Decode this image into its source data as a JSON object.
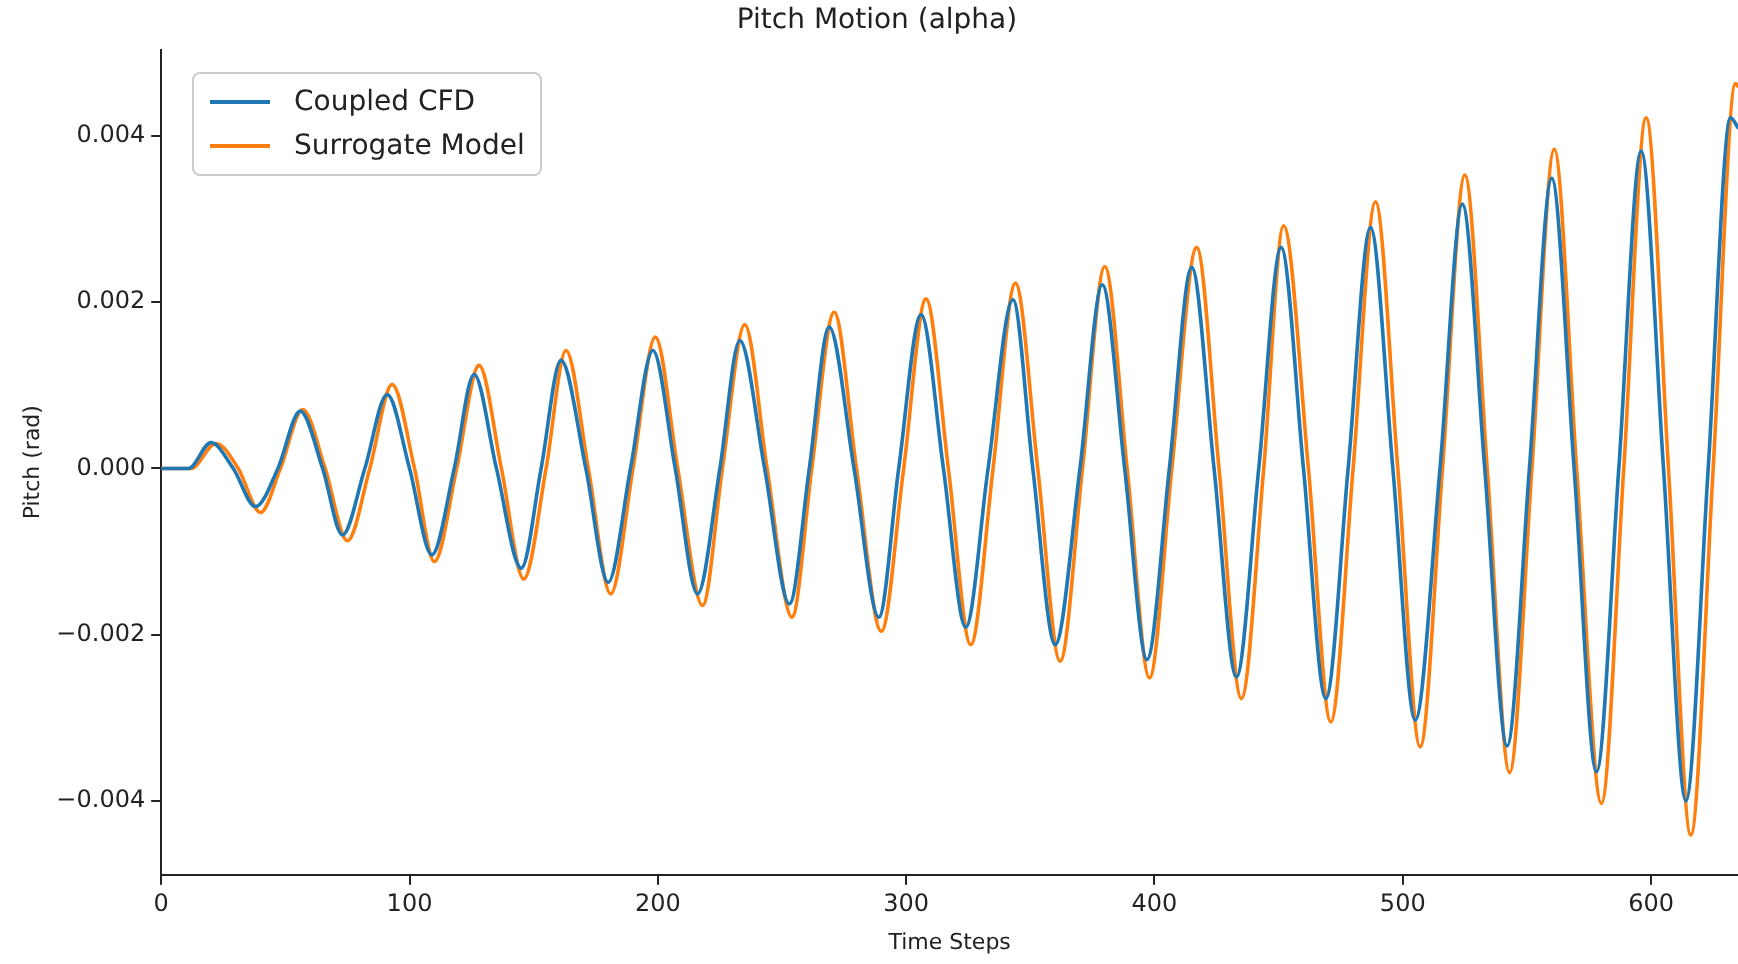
{
  "chart_data": {
    "type": "line",
    "title": "Pitch Motion (alpha)",
    "xlabel": "Time Steps",
    "ylabel": "Pitch (rad)",
    "legend": "top left",
    "grid": false,
    "xlim": [
      0,
      635
    ],
    "xticks": [
      0,
      100,
      200,
      300,
      400,
      500,
      600
    ],
    "ylim": [
      -0.00489,
      0.00504
    ],
    "yticks": [
      {
        "value": -0.004,
        "label": "−0.004"
      },
      {
        "value": -0.002,
        "label": "−0.002"
      },
      {
        "value": 0,
        "label": "0.000"
      },
      {
        "value": 0.002,
        "label": "0.002"
      },
      {
        "value": 0.004,
        "label": "0.004"
      }
    ],
    "series": [
      {
        "name": "Coupled CFD",
        "color": "#1f77b4",
        "x": [
          0,
          11,
          20,
          29,
          38,
          47,
          56,
          65,
          73,
          82,
          91,
          100,
          109,
          118,
          126,
          135,
          145,
          153,
          161,
          171,
          180,
          189,
          198,
          207,
          216,
          225,
          233,
          243,
          253,
          261,
          269,
          279,
          289,
          297,
          306,
          315,
          324,
          333,
          343,
          351,
          360,
          370,
          379,
          388,
          397,
          406,
          415,
          424,
          433,
          442,
          451,
          460,
          469,
          478,
          487,
          496,
          505,
          515,
          524,
          533,
          542,
          551,
          560,
          569,
          578,
          587,
          596,
          605,
          614,
          623,
          632,
          635
        ],
        "values": [
          0,
          0,
          0.00031,
          0,
          -0.00046,
          0,
          0.00069,
          0,
          -0.0008,
          0,
          0.00089,
          0,
          -0.00104,
          0,
          0.00113,
          0,
          -0.0012,
          0,
          0.0013,
          0,
          -0.00137,
          0,
          0.00142,
          0,
          -0.00151,
          0,
          0.00154,
          0,
          -0.00163,
          0,
          0.0017,
          0,
          -0.00179,
          0,
          0.00185,
          0,
          -0.00191,
          0,
          0.00203,
          0,
          -0.00212,
          0,
          0.00221,
          0,
          -0.0023,
          0,
          0.00242,
          0,
          -0.00251,
          0,
          0.00266,
          0,
          -0.00277,
          0,
          0.0029,
          0,
          -0.00303,
          0,
          0.00318,
          0,
          -0.00334,
          0,
          0.00349,
          0,
          -0.00365,
          0,
          0.00382,
          0,
          -0.004,
          0,
          0.00422,
          0.0041
        ]
      },
      {
        "name": "Surrogate Model",
        "color": "#ff7f0e",
        "x": [
          0,
          12,
          22,
          31,
          40,
          48,
          57,
          66,
          75,
          84,
          93,
          102,
          110,
          119,
          128,
          137,
          146,
          155,
          163,
          172,
          181,
          190,
          199,
          208,
          218,
          226,
          235,
          244,
          254,
          262,
          271,
          280,
          290,
          299,
          308,
          317,
          326,
          335,
          344,
          353,
          362,
          371,
          380,
          389,
          398,
          407,
          417,
          426,
          435,
          444,
          452,
          462,
          471,
          480,
          489,
          498,
          507,
          516,
          525,
          534,
          543,
          552,
          561,
          570,
          580,
          589,
          598,
          607,
          616,
          625,
          634,
          635
        ],
        "values": [
          0,
          0,
          0.0003,
          0,
          -0.00053,
          0,
          0.00071,
          0,
          -0.00087,
          0,
          0.00101,
          0,
          -0.00112,
          0,
          0.00124,
          0,
          -0.00133,
          0,
          0.00142,
          0,
          -0.00151,
          0,
          0.00158,
          0,
          -0.00165,
          0,
          0.00173,
          0,
          -0.00179,
          0,
          0.00188,
          0,
          -0.00196,
          0,
          0.00204,
          0,
          -0.00212,
          0,
          0.00223,
          0,
          -0.00232,
          0,
          0.00243,
          0,
          -0.00252,
          0,
          0.00266,
          0,
          -0.00277,
          0,
          0.00292,
          0,
          -0.00305,
          0,
          0.00321,
          0,
          -0.00335,
          0,
          0.00353,
          0,
          -0.00366,
          0,
          0.00384,
          0,
          -0.00403,
          0,
          0.00422,
          0,
          -0.00441,
          0,
          0.00463,
          0.0046
        ]
      }
    ]
  }
}
